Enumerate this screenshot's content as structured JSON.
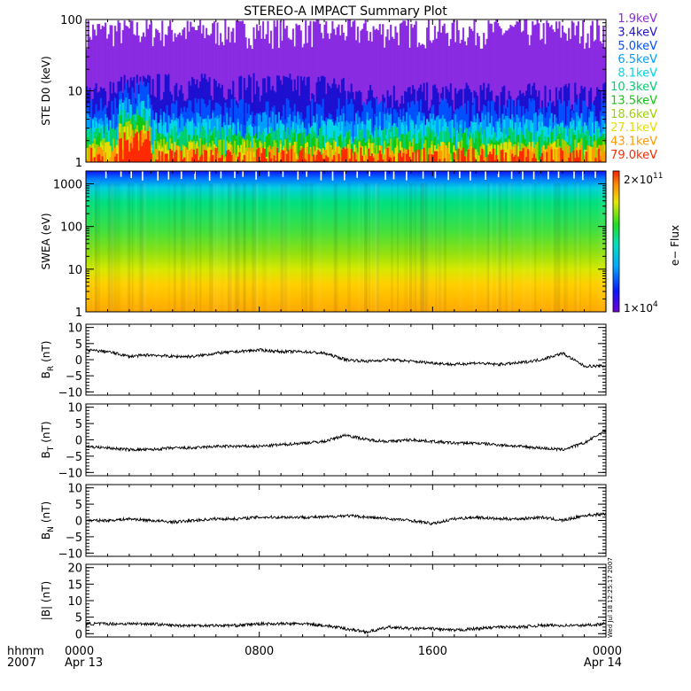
{
  "title": "STEREO-A IMPACT Summary Plot",
  "x_axis": {
    "label_lines": [
      "hhmm",
      "2007"
    ],
    "ticks": [
      {
        "hours": 0,
        "time": "0000",
        "date": "Apr 13"
      },
      {
        "hours": 8,
        "time": "0800",
        "date": ""
      },
      {
        "hours": 16,
        "time": "1600",
        "date": ""
      },
      {
        "hours": 24,
        "time": "0000",
        "date": "Apr 14"
      }
    ],
    "range_hours": [
      0,
      24
    ]
  },
  "stamp": "Wed Jul 18 12:25:17 2007",
  "chart_data": [
    {
      "type": "line",
      "panel": "ste",
      "ylabel": "STE D0 (keV)",
      "yscale": "log",
      "ylim": [
        1,
        100
      ],
      "yticks": [
        "1",
        "10",
        "100"
      ],
      "legend_placement": "right",
      "series": [
        {
          "name": "1.9keV",
          "color": "#8a2be2",
          "level": 70
        },
        {
          "name": "3.4keV",
          "color": "#1e10d0",
          "level": 9
        },
        {
          "name": "5.0keV",
          "color": "#0050ff",
          "level": 5.5
        },
        {
          "name": "6.5keV",
          "color": "#009eff",
          "level": 3.5
        },
        {
          "name": "8.1keV",
          "color": "#00d6e6",
          "level": 2.8
        },
        {
          "name": "10.3keV",
          "color": "#00d070",
          "level": 2.2
        },
        {
          "name": "13.5keV",
          "color": "#10c810",
          "level": 1.8
        },
        {
          "name": "18.6keV",
          "color": "#9cd200",
          "level": 1.5
        },
        {
          "name": "27.1keV",
          "color": "#e6dc00",
          "level": 1.35
        },
        {
          "name": "43.1keV",
          "color": "#ff9a00",
          "level": 1.2
        },
        {
          "name": "79.0keV",
          "color": "#ff2a00",
          "level": 1.1
        }
      ]
    },
    {
      "type": "heatmap",
      "panel": "swea",
      "ylabel": "SWEA (eV)",
      "yscale": "log",
      "ylim": [
        1,
        2000
      ],
      "yticks": [
        "1",
        "10",
        "100",
        "1000"
      ],
      "colorbar": {
        "label": "e− Flux",
        "max_label": "2×10",
        "max_exp": "11",
        "min_label": "1×10",
        "min_exp": "4"
      }
    },
    {
      "type": "line",
      "panel": "br",
      "ylabel": "B",
      "ylabel_sub": "R",
      "ylabel_unit": "(nT)",
      "ylim": [
        -11,
        11
      ],
      "yticks": [
        "10",
        "5",
        "0",
        "−5",
        "−10"
      ],
      "x_hours": [
        0,
        1,
        2,
        3,
        4,
        5,
        6,
        7,
        8,
        9,
        10,
        11,
        12,
        13,
        14,
        15,
        16,
        17,
        18,
        19,
        20,
        21,
        22,
        23,
        24
      ],
      "values": [
        3,
        2.5,
        1,
        1.5,
        1,
        1,
        2,
        2.5,
        3,
        2.5,
        2.5,
        2,
        0,
        -0.5,
        0,
        -0.5,
        -1,
        -1.5,
        -1,
        -1.5,
        -1,
        0,
        2,
        -2,
        -2
      ]
    },
    {
      "type": "line",
      "panel": "bt",
      "ylabel": "B",
      "ylabel_sub": "T",
      "ylabel_unit": "(nT)",
      "ylim": [
        -11,
        11
      ],
      "yticks": [
        "10",
        "5",
        "0",
        "−5",
        "−10"
      ],
      "x_hours": [
        0,
        1,
        2,
        3,
        4,
        5,
        6,
        7,
        8,
        9,
        10,
        11,
        12,
        13,
        14,
        15,
        16,
        17,
        18,
        19,
        20,
        21,
        22,
        23,
        24
      ],
      "values": [
        -2,
        -2.5,
        -3,
        -3,
        -2.5,
        -2.5,
        -2,
        -2,
        -2,
        -1.5,
        -1,
        -0.5,
        1.5,
        0,
        -0.5,
        0,
        -0.5,
        -1,
        -1,
        -1.5,
        -2,
        -2.5,
        -3,
        -1,
        3
      ]
    },
    {
      "type": "line",
      "panel": "bn",
      "ylabel": "B",
      "ylabel_sub": "N",
      "ylabel_unit": "(nT)",
      "ylim": [
        -11,
        11
      ],
      "yticks": [
        "10",
        "5",
        "0",
        "−5",
        "−10"
      ],
      "x_hours": [
        0,
        1,
        2,
        3,
        4,
        5,
        6,
        7,
        8,
        9,
        10,
        11,
        12,
        13,
        14,
        15,
        16,
        17,
        18,
        19,
        20,
        21,
        22,
        23,
        24
      ],
      "values": [
        0,
        0,
        0.5,
        0,
        -0.5,
        0,
        0.5,
        0.5,
        1,
        1,
        1,
        1,
        1.5,
        1,
        0.5,
        0,
        -1,
        0.5,
        1,
        0.5,
        0.5,
        1,
        0,
        1.5,
        2
      ]
    },
    {
      "type": "line",
      "panel": "bmag",
      "ylabel": "|B| (nT)",
      "ylim": [
        -1,
        21
      ],
      "yticks": [
        "20",
        "15",
        "10",
        "5",
        "0"
      ],
      "x_hours": [
        0,
        1,
        2,
        3,
        4,
        5,
        6,
        7,
        8,
        9,
        10,
        11,
        12,
        13,
        14,
        15,
        16,
        17,
        18,
        19,
        20,
        21,
        22,
        23,
        24
      ],
      "values": [
        3,
        3,
        3,
        3,
        2.5,
        2.5,
        2.5,
        2.5,
        3,
        3,
        3,
        2.5,
        1.5,
        0.5,
        2,
        1.5,
        1.5,
        1,
        1.5,
        2,
        2,
        2.5,
        2.5,
        2.5,
        3
      ]
    }
  ]
}
